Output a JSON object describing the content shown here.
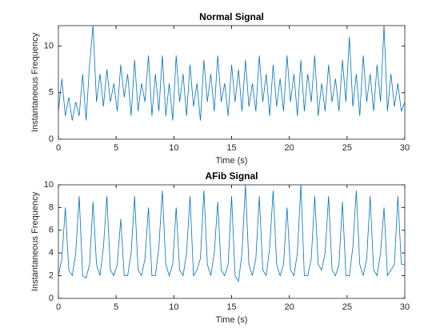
{
  "chart_data": [
    {
      "type": "line",
      "title": "Normal Signal",
      "xlabel": "Time (s)",
      "ylabel": "Instantaneous Frequency",
      "color": "#0072bd",
      "x": [
        0,
        0.3,
        0.6,
        0.9,
        1.2,
        1.5,
        1.8,
        2.1,
        2.4,
        2.7,
        3,
        3.3,
        3.6,
        3.9,
        4.2,
        4.5,
        4.8,
        5.1,
        5.4,
        5.7,
        6,
        6.3,
        6.6,
        6.9,
        7.2,
        7.5,
        7.8,
        8.1,
        8.4,
        8.7,
        9,
        9.3,
        9.6,
        9.9,
        10.2,
        10.5,
        10.8,
        11.1,
        11.4,
        11.7,
        12,
        12.3,
        12.6,
        12.9,
        13.2,
        13.5,
        13.8,
        14.1,
        14.4,
        14.7,
        15,
        15.3,
        15.6,
        15.9,
        16.2,
        16.5,
        16.8,
        17.1,
        17.4,
        17.7,
        18,
        18.3,
        18.6,
        18.9,
        19.2,
        19.5,
        19.8,
        20.1,
        20.4,
        20.7,
        21,
        21.3,
        21.6,
        21.9,
        22.2,
        22.5,
        22.8,
        23.1,
        23.4,
        23.7,
        24,
        24.3,
        24.6,
        24.9,
        25.2,
        25.5,
        25.8,
        26.1,
        26.4,
        26.7,
        27,
        27.3,
        27.6,
        27.9,
        28.2,
        28.5,
        28.8,
        29.1,
        29.4,
        29.7,
        30
      ],
      "values": [
        3,
        6.5,
        2.5,
        4.5,
        2,
        4,
        2.5,
        7,
        2,
        8,
        12.2,
        4,
        7,
        3.5,
        7.5,
        4,
        6,
        3,
        8,
        4.5,
        7,
        2.5,
        8.5,
        3,
        6,
        4,
        9,
        2.5,
        7,
        3,
        9,
        2.5,
        6,
        2,
        9,
        4,
        7,
        2.5,
        8,
        3.5,
        6,
        2,
        8.5,
        4,
        7,
        3,
        9,
        4,
        6,
        2.5,
        8,
        4,
        7.5,
        3,
        8.5,
        3.5,
        6,
        3,
        9,
        4,
        7,
        2.5,
        8,
        3.5,
        6.5,
        3,
        9,
        4,
        7,
        2.5,
        8.5,
        3,
        7,
        4,
        9,
        2.5,
        6,
        3,
        8,
        4,
        6.5,
        3,
        8.5,
        4,
        11,
        3.5,
        7,
        2.5,
        9,
        4,
        7,
        3,
        8,
        4,
        12.2,
        3,
        7,
        3.5,
        6,
        3,
        4
      ],
      "xlim": [
        0,
        30
      ],
      "xticks": [
        0,
        5,
        10,
        15,
        20,
        25,
        30
      ],
      "ylim": [
        0,
        12.2
      ],
      "yticks": [
        0,
        5,
        10
      ]
    },
    {
      "type": "line",
      "title": "AFib Signal",
      "xlabel": "Time (s)",
      "ylabel": "Instantaneous Frequency",
      "color": "#0072bd",
      "x": [
        0,
        0.3,
        0.6,
        0.9,
        1.2,
        1.5,
        1.8,
        2.1,
        2.4,
        2.7,
        3,
        3.3,
        3.6,
        3.9,
        4.2,
        4.5,
        4.8,
        5.1,
        5.4,
        5.7,
        6,
        6.3,
        6.6,
        6.9,
        7.2,
        7.5,
        7.8,
        8.1,
        8.4,
        8.7,
        9,
        9.3,
        9.6,
        9.9,
        10.2,
        10.5,
        10.8,
        11.1,
        11.4,
        11.7,
        12,
        12.3,
        12.6,
        12.9,
        13.2,
        13.5,
        13.8,
        14.1,
        14.4,
        14.7,
        15,
        15.3,
        15.6,
        15.9,
        16.2,
        16.5,
        16.8,
        17.1,
        17.4,
        17.7,
        18,
        18.3,
        18.6,
        18.9,
        19.2,
        19.5,
        19.8,
        20.1,
        20.4,
        20.7,
        21,
        21.3,
        21.6,
        21.9,
        22.2,
        22.5,
        22.8,
        23.1,
        23.4,
        23.7,
        24,
        24.3,
        24.6,
        24.9,
        25.2,
        25.5,
        25.8,
        26.1,
        26.4,
        26.7,
        27,
        27.3,
        27.6,
        27.9,
        28.2,
        28.5,
        28.8,
        29.1,
        29.4,
        29.7,
        30
      ],
      "values": [
        2,
        3.5,
        8,
        2.5,
        2,
        4,
        9,
        2,
        1.8,
        3,
        8.5,
        3,
        2,
        4.5,
        9,
        2.5,
        2,
        3,
        7,
        2,
        2,
        4,
        9,
        2.5,
        2,
        3.5,
        8,
        2,
        2,
        4.5,
        9.5,
        3,
        2,
        3,
        8,
        2.5,
        2,
        4,
        9,
        2,
        2.5,
        3.5,
        9.5,
        3,
        2,
        4,
        8.5,
        2.5,
        2,
        3,
        9,
        2,
        1.5,
        4,
        10,
        3,
        2,
        3.5,
        9,
        2.5,
        2,
        4.5,
        9.5,
        3,
        2,
        3,
        8,
        2.5,
        2,
        4,
        10,
        2,
        2,
        3.5,
        9,
        3,
        2.5,
        4,
        9,
        2.5,
        2,
        3,
        8.5,
        2,
        2,
        4.5,
        9.5,
        3,
        2,
        3.5,
        9,
        2.5,
        2,
        4,
        8,
        2,
        2.5,
        3,
        9,
        3,
        3
      ],
      "xlim": [
        0,
        30
      ],
      "xticks": [
        0,
        5,
        10,
        15,
        20,
        25,
        30
      ],
      "ylim": [
        0,
        10
      ],
      "yticks": [
        0,
        2,
        4,
        6,
        8,
        10
      ]
    }
  ]
}
